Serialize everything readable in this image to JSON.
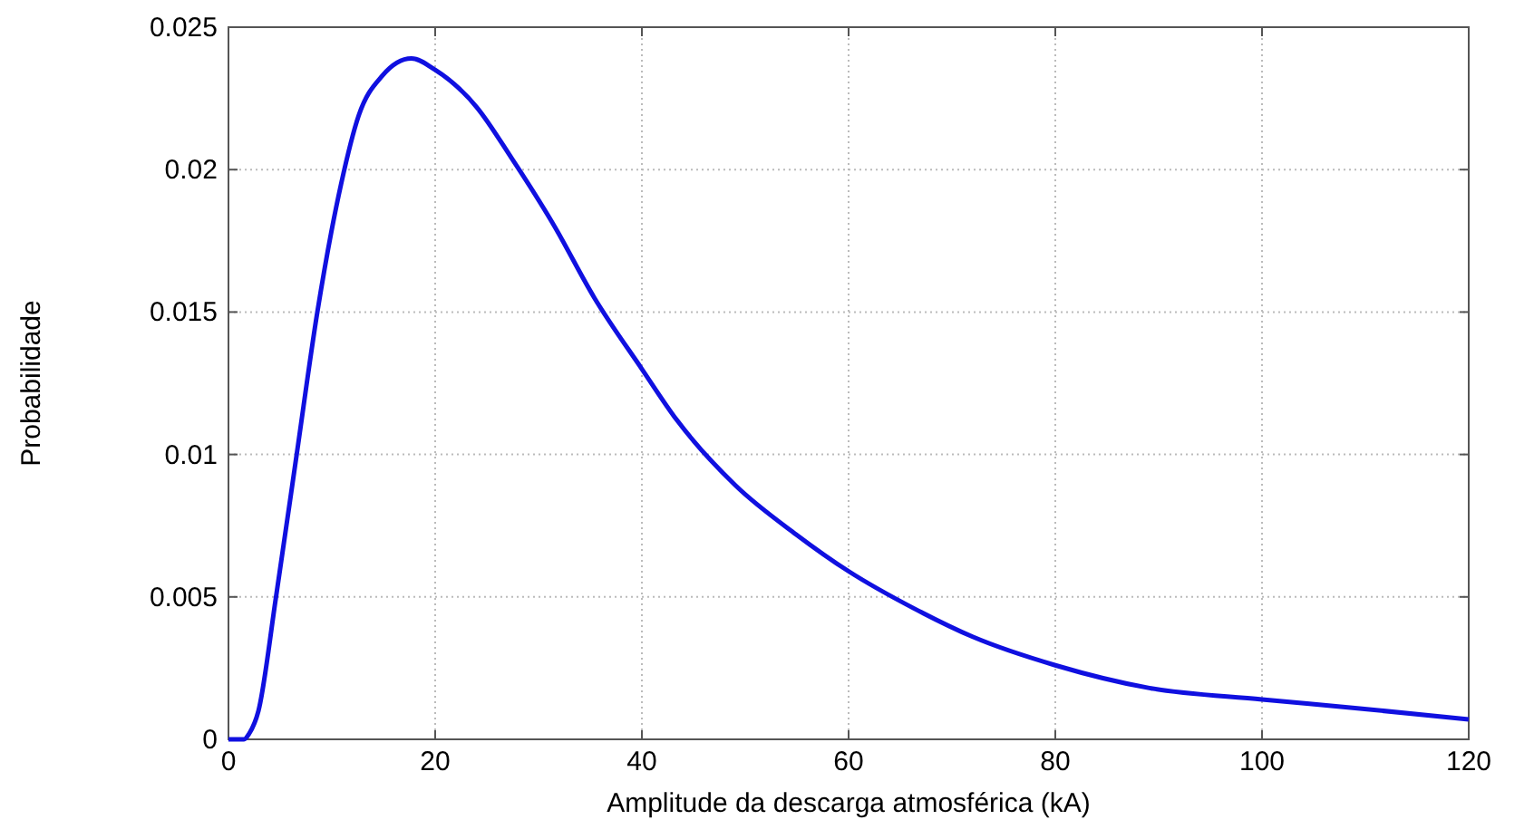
{
  "chart_data": {
    "type": "line",
    "xlabel": "Amplitude da descarga atmosférica (kA)",
    "ylabel": "Probabilidade",
    "x": [
      0,
      1.5,
      2,
      2.9,
      4.6,
      6.6,
      8.6,
      10.9,
      12.6,
      14.9,
      17.7,
      20,
      24,
      27.4,
      31.4,
      35.4,
      40,
      43.4,
      49.1,
      54.9,
      60,
      66.3,
      72,
      80,
      89.1,
      100,
      109,
      120
    ],
    "series": [
      {
        "color": "#1010e0",
        "values": [
          0,
          0,
          0.0002,
          0.001,
          0.005,
          0.01,
          0.015,
          0.0195,
          0.0219,
          0.0233,
          0.0239,
          0.0235,
          0.0222,
          0.0204,
          0.0181,
          0.0155,
          0.013,
          0.0112,
          0.0089,
          0.0072,
          0.0059,
          0.0046,
          0.0036,
          0.0026,
          0.0018,
          0.0014,
          0.0011,
          0.0007
        ]
      }
    ],
    "xlim": [
      0,
      120
    ],
    "xticks": [
      0,
      20,
      40,
      60,
      80,
      100,
      120
    ],
    "ylim": [
      0,
      0.025
    ],
    "yticks": [
      0,
      0.005,
      0.01,
      0.015,
      0.02,
      0.025
    ],
    "grid": true,
    "marker": "none",
    "line_style": "solid"
  }
}
